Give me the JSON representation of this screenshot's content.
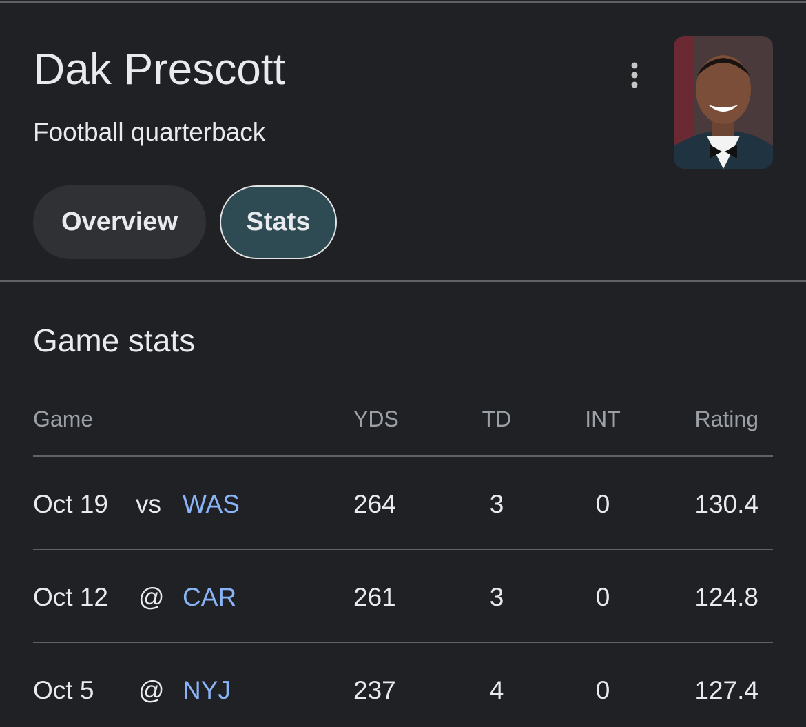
{
  "header": {
    "name": "Dak Prescott",
    "subtitle": "Football quarterback"
  },
  "tabs": [
    "Overview",
    "Stats"
  ],
  "section": {
    "title": "Game stats",
    "table": {
      "columns": [
        "Game",
        "YDS",
        "TD",
        "INT",
        "Rating"
      ],
      "rows": [
        [
          "Oct 19",
          "vs",
          "WAS",
          "264",
          "3",
          "0",
          "130.4"
        ],
        [
          "Oct 12",
          "@",
          "CAR",
          "261",
          "3",
          "0",
          "124.8"
        ],
        [
          "Oct 5",
          "@",
          "NYJ",
          "237",
          "4",
          "0",
          "127.4"
        ]
      ]
    }
  }
}
